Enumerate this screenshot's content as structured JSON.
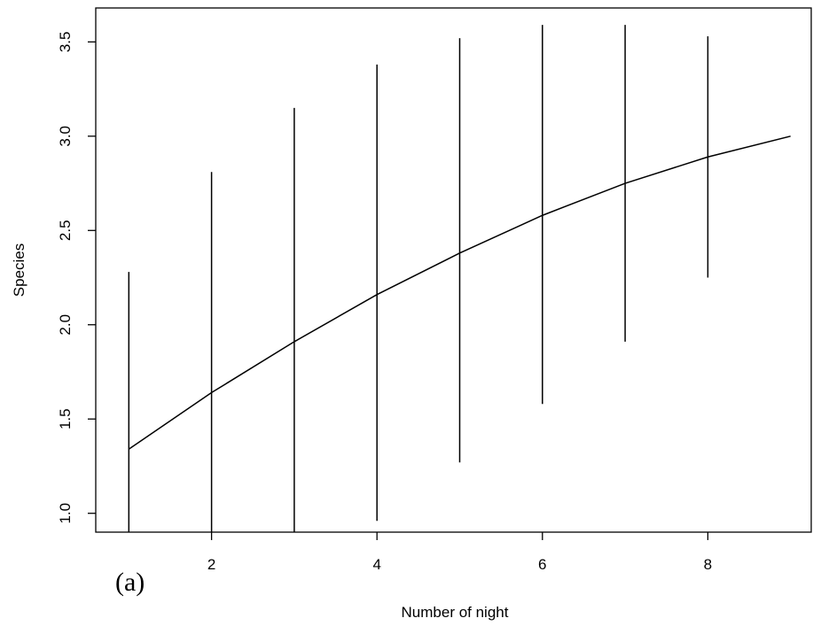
{
  "chart_data": {
    "type": "line",
    "title": "",
    "xlabel": "Number of night",
    "ylabel": "Species",
    "panel_label": "(a)",
    "xlim": [
      0.6,
      9.25
    ],
    "ylim": [
      0.9,
      3.68
    ],
    "x_ticks": [
      2,
      4,
      6,
      8
    ],
    "x_tick_labels": [
      "2",
      "4",
      "6",
      "8"
    ],
    "y_ticks": [
      1.0,
      1.5,
      2.0,
      2.5,
      3.0,
      3.5
    ],
    "y_tick_labels": [
      "1.0",
      "1.5",
      "2.0",
      "2.5",
      "3.0",
      "3.5"
    ],
    "grid": false,
    "legend": "none",
    "series": [
      {
        "x": [
          1,
          2,
          3,
          4,
          5,
          6,
          7,
          8,
          9
        ],
        "y": [
          1.34,
          1.64,
          1.91,
          2.16,
          2.38,
          2.58,
          2.75,
          2.89,
          3.0
        ]
      }
    ],
    "error_bars": [
      {
        "x": 1,
        "low": 0.9,
        "high": 2.28
      },
      {
        "x": 2,
        "low": 0.9,
        "high": 2.81
      },
      {
        "x": 3,
        "low": 0.9,
        "high": 3.15
      },
      {
        "x": 4,
        "low": 0.96,
        "high": 3.38
      },
      {
        "x": 5,
        "low": 1.27,
        "high": 3.52
      },
      {
        "x": 6,
        "low": 1.58,
        "high": 3.59
      },
      {
        "x": 7,
        "low": 1.91,
        "high": 3.59
      },
      {
        "x": 8,
        "low": 2.25,
        "high": 3.53
      }
    ]
  }
}
